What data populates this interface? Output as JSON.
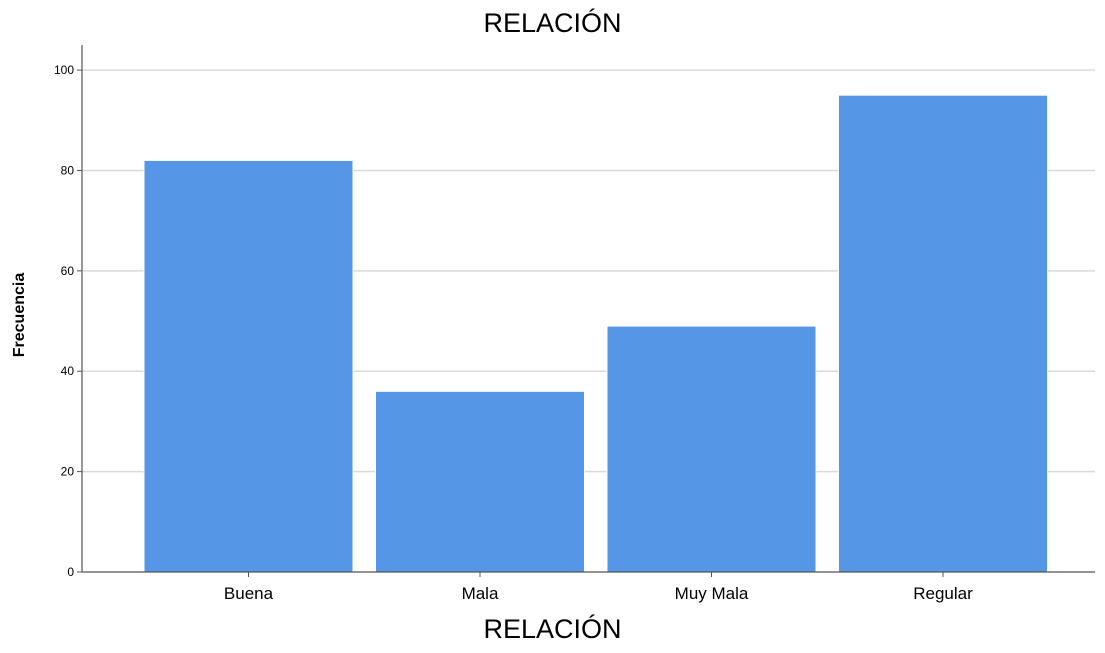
{
  "chart_data": {
    "type": "bar",
    "title": "RELACIÓN",
    "xlabel": "RELACIÓN",
    "ylabel": "Frecuencia",
    "categories": [
      "Buena",
      "Mala",
      "Muy Mala",
      "Regular"
    ],
    "values": [
      82,
      36,
      49,
      95
    ],
    "ylim": [
      0,
      105
    ],
    "yticks": [
      0,
      20,
      40,
      60,
      80,
      100
    ],
    "grid": true,
    "legend": "none",
    "colors": {
      "bar": "#5596e6",
      "bar_edge": "#ffffff",
      "grid": "#d9d9d9",
      "axis": "#555555",
      "text": "#000000"
    }
  }
}
